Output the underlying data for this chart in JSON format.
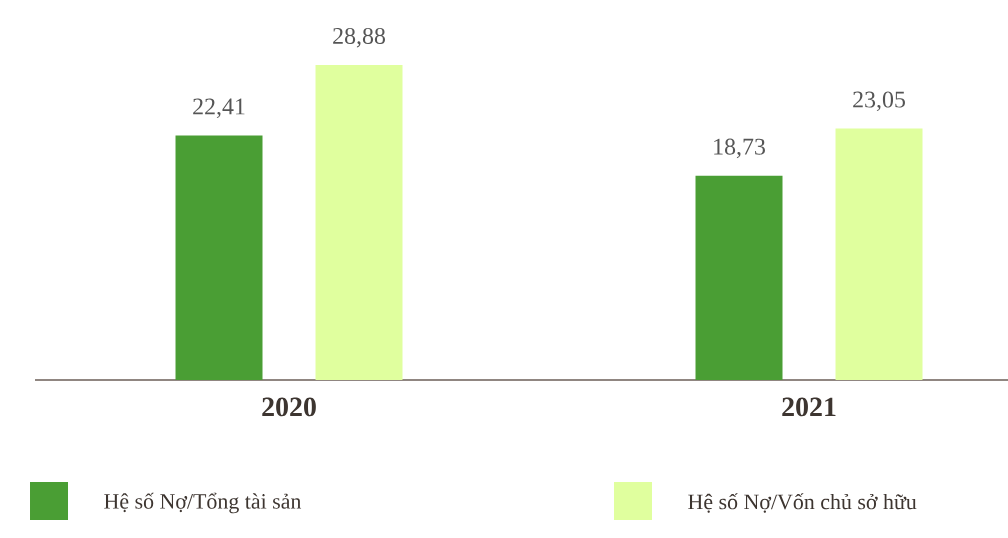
{
  "chart_data": {
    "type": "bar",
    "categories": [
      "2020",
      "2021"
    ],
    "series": [
      {
        "name": "Hệ số Nợ/Tổng tài sản",
        "color": "#4a9e34",
        "values": [
          22.41,
          18.73
        ],
        "value_labels": [
          "22,41",
          "18,73"
        ]
      },
      {
        "name": "Hệ số Nợ/Vốn chủ sở hữu",
        "color": "#e0ff9e",
        "values": [
          28.88,
          23.05
        ],
        "value_labels": [
          "28,88",
          "23,05"
        ]
      }
    ],
    "legend": "bottom"
  }
}
